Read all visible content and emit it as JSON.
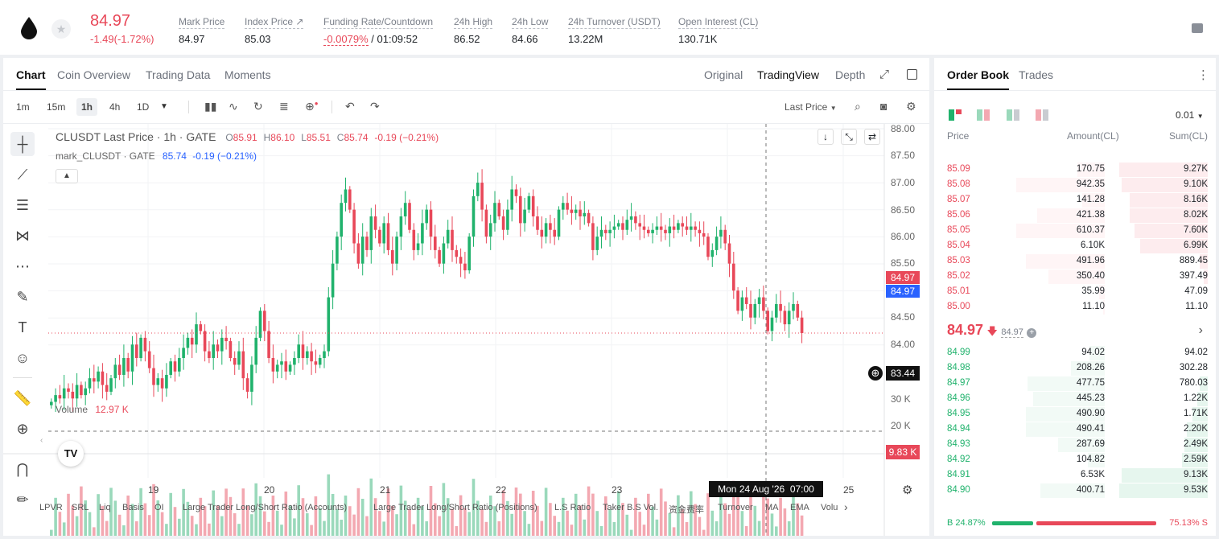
{
  "header": {
    "last_price": "84.97",
    "change": "-1.49(-1.72%)",
    "stats": [
      {
        "label": "Mark Price",
        "value": "84.97"
      },
      {
        "label": "Index Price ↗",
        "value": "85.03"
      },
      {
        "label": "Funding Rate/Countdown",
        "value": "-0.0079%",
        "value2": "/ 01:09:52"
      },
      {
        "label": "24h High",
        "value": "86.52"
      },
      {
        "label": "24h Low",
        "value": "84.66"
      },
      {
        "label": "24h Turnover (USDT)",
        "value": "13.22M"
      },
      {
        "label": "Open Interest (CL)",
        "value": "130.71K"
      }
    ]
  },
  "chart_tabs": [
    "Chart",
    "Coin Overview",
    "Trading Data",
    "Moments"
  ],
  "view_tabs": [
    "Original",
    "TradingView",
    "Depth"
  ],
  "timeframes": [
    "1m",
    "15m",
    "1h",
    "4h",
    "1D"
  ],
  "price_source": "Last Price",
  "legend": {
    "symbol": "CLUSDT Last Price · 1h · GATE",
    "o_label": "O",
    "o": "85.91",
    "h_label": "H",
    "h": "86.10",
    "l_label": "L",
    "l": "85.51",
    "c_label": "C",
    "c": "85.74",
    "chg": "-0.19 (−0.21%)",
    "mark_name": "mark_CLUSDT · GATE",
    "mark_val": "85.74",
    "mark_chg": "-0.19 (−0.21%)",
    "volume_label": "Volume",
    "volume_val": "12.97 K"
  },
  "price_labels": {
    "last": "84.97",
    "mark": "84.97",
    "cross": "83.44",
    "volume_last": "9.83 K",
    "crosshair_time": "Mon 24 Aug '26  07:00"
  },
  "indicators": [
    "LPVR",
    "SRL",
    "Liq",
    "Basis",
    "OI",
    "Large Trader Long/Short Ratio (Accounts)",
    "Large Trader Long/Short Ratio (Positions)",
    "L.S Ratio",
    "Taker B.S Vol.",
    "资金费率",
    "Turnover",
    "MA",
    "EMA",
    "Volu"
  ],
  "chart_data": {
    "type": "candlestick",
    "price_axis": [
      "88.00",
      "87.50",
      "87.00",
      "86.50",
      "86.00",
      "85.50",
      "85.00",
      "84.50",
      "84.00"
    ],
    "volume_axis": [
      "30 K",
      "20 K"
    ],
    "x_ticks": [
      "19",
      "20",
      "21",
      "22",
      "23",
      "25"
    ],
    "ylim": [
      83.3,
      88.0
    ],
    "close_series": [
      83.95,
      84.05,
      84.0,
      84.15,
      84.1,
      84.0,
      84.2,
      84.05,
      84.15,
      84.3,
      84.25,
      84.4,
      84.2,
      84.1,
      84.3,
      84.5,
      84.35,
      84.6,
      84.4,
      84.8,
      84.6,
      84.9,
      84.7,
      84.45,
      84.2,
      84.3,
      84.15,
      84.35,
      84.55,
      84.4,
      84.6,
      84.75,
      84.9,
      84.8,
      85.1,
      85.0,
      84.7,
      84.6,
      84.8,
      84.7,
      84.9,
      84.85,
      84.6,
      84.5,
      84.7,
      84.3,
      84.1,
      84.5,
      84.9,
      85.3,
      85.0,
      84.6,
      84.4,
      84.5,
      84.55,
      84.4,
      84.5,
      84.6,
      84.8,
      84.6,
      84.7,
      84.55,
      84.5,
      84.6,
      84.7,
      85.5,
      86.0,
      86.4,
      86.9,
      87.1,
      86.8,
      86.3,
      86.0,
      86.4,
      86.2,
      86.7,
      86.5,
      86.3,
      86.6,
      86.2,
      86.0,
      86.4,
      86.7,
      86.9,
      86.5,
      86.2,
      86.3,
      86.6,
      86.8,
      86.4,
      86.2,
      86.0,
      86.3,
      86.5,
      86.2,
      86.1,
      86.0,
      85.9,
      86.4,
      87.0,
      87.2,
      86.8,
      86.4,
      86.6,
      86.9,
      86.7,
      86.5,
      86.8,
      87.1,
      87.0,
      86.6,
      86.8,
      87.0,
      86.7,
      86.5,
      86.4,
      86.6,
      86.5,
      86.4,
      86.8,
      86.9,
      86.8,
      86.75,
      86.8,
      86.7,
      86.75,
      86.6,
      86.2,
      86.4,
      86.5,
      86.45,
      86.5,
      86.55,
      86.6,
      86.5,
      86.65,
      86.7,
      86.6,
      86.55,
      86.5,
      86.45,
      86.5,
      86.55,
      86.5,
      86.45,
      86.55,
      86.5,
      86.6,
      86.55,
      86.5,
      86.55,
      86.5,
      86.45,
      86.4,
      86.1,
      86.2,
      86.4,
      86.5,
      86.3,
      86.0,
      85.6,
      85.3,
      85.5,
      85.4,
      85.2,
      85.4,
      85.5,
      85.3,
      85.0,
      85.2,
      85.4,
      85.3,
      85.1,
      85.3,
      85.4,
      85.2,
      84.97
    ]
  },
  "orderbook": {
    "tabs": [
      "Order Book",
      "Trades"
    ],
    "precision": "0.01",
    "columns": [
      "Price",
      "Amount(CL)",
      "Sum(CL)"
    ],
    "asks": [
      {
        "price": "85.09",
        "amount": "170.75",
        "sum": "9.27K",
        "depth": 0.34
      },
      {
        "price": "85.08",
        "amount": "942.35",
        "sum": "9.10K",
        "depth": 0.33
      },
      {
        "price": "85.07",
        "amount": "141.28",
        "sum": "8.16K",
        "depth": 0.3
      },
      {
        "price": "85.06",
        "amount": "421.38",
        "sum": "8.02K",
        "depth": 0.3
      },
      {
        "price": "85.05",
        "amount": "610.37",
        "sum": "7.60K",
        "depth": 0.28
      },
      {
        "price": "85.04",
        "amount": "6.10K",
        "sum": "6.99K",
        "depth": 0.26
      },
      {
        "price": "85.03",
        "amount": "491.96",
        "sum": "889.45",
        "depth": 0.03
      },
      {
        "price": "85.02",
        "amount": "350.40",
        "sum": "397.49",
        "depth": 0.015
      },
      {
        "price": "85.01",
        "amount": "35.99",
        "sum": "47.09",
        "depth": 0.0
      },
      {
        "price": "85.00",
        "amount": "11.10",
        "sum": "11.10",
        "depth": 0.0
      }
    ],
    "mid_price": "84.97",
    "mid_mark": "84.97",
    "bids": [
      {
        "price": "84.99",
        "amount": "94.02",
        "sum": "94.02",
        "depth": 0.0
      },
      {
        "price": "84.98",
        "amount": "208.26",
        "sum": "302.28",
        "depth": 0.0
      },
      {
        "price": "84.97",
        "amount": "477.75",
        "sum": "780.03",
        "depth": 0.03
      },
      {
        "price": "84.96",
        "amount": "445.23",
        "sum": "1.22K",
        "depth": 0.04
      },
      {
        "price": "84.95",
        "amount": "490.90",
        "sum": "1.71K",
        "depth": 0.06
      },
      {
        "price": "84.94",
        "amount": "490.41",
        "sum": "2.20K",
        "depth": 0.08
      },
      {
        "price": "84.93",
        "amount": "287.69",
        "sum": "2.49K",
        "depth": 0.09
      },
      {
        "price": "84.92",
        "amount": "104.82",
        "sum": "2.59K",
        "depth": 0.1
      },
      {
        "price": "84.91",
        "amount": "6.53K",
        "sum": "9.13K",
        "depth": 0.33
      },
      {
        "price": "84.90",
        "amount": "400.71",
        "sum": "9.53K",
        "depth": 0.34
      }
    ],
    "buy_ratio": "B 24.87%",
    "sell_ratio": "75.13% S",
    "buy_fraction": 0.2487
  },
  "colors": {
    "up": "#20b26c",
    "down": "#e84859",
    "blue": "#2962ff"
  }
}
